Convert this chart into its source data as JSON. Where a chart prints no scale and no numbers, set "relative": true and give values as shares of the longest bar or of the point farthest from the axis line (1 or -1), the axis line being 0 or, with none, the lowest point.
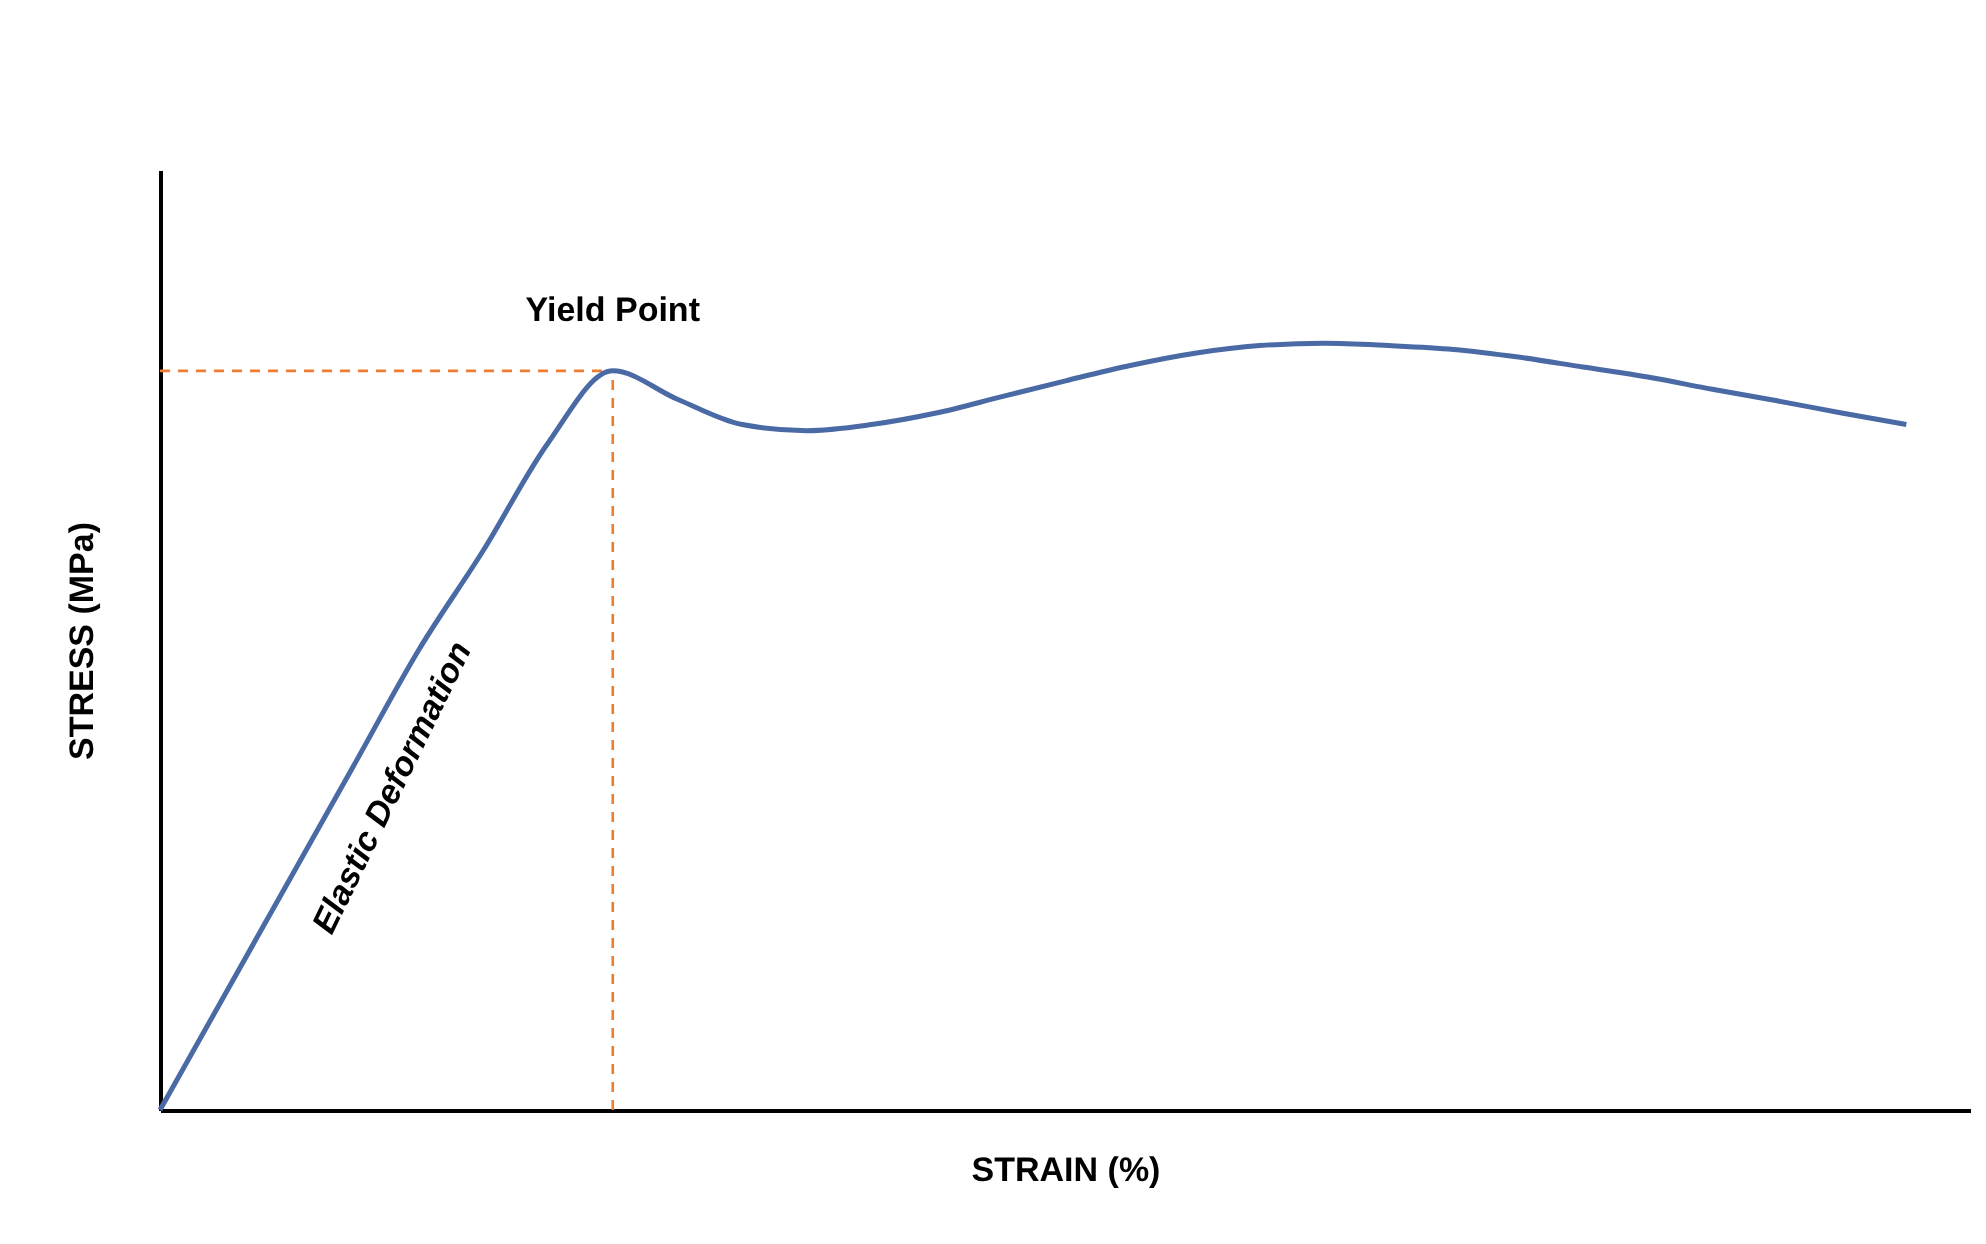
{
  "chart_data": {
    "type": "line",
    "relative": true,
    "xlabel": "STRAIN (%)",
    "ylabel": "STRESS (MPa)",
    "categories": [
      null,
      null,
      null,
      null,
      null,
      null,
      null,
      null,
      null,
      null,
      null,
      null,
      null,
      null,
      null,
      null,
      null,
      null,
      null,
      null,
      null,
      null,
      null,
      null,
      null,
      null,
      null,
      null
    ],
    "series": [
      {
        "color": "#4a6aa5",
        "values": [
          0,
          0.15,
          0.3,
          0.45,
          0.6,
          0.73,
          0.87,
          0.964,
          0.927,
          0.894,
          0.886,
          0.894,
          0.909,
          0.93,
          0.951,
          0.971,
          0.987,
          0.997,
          1,
          0.997,
          0.992,
          0.982,
          0.969,
          0.956,
          0.94,
          0.925,
          0.909,
          0.894
        ]
      }
    ],
    "ref_lines": [
      {
        "axis": "y",
        "value": 0.964,
        "color": "#ed7d31",
        "line_style": "dashed"
      }
    ],
    "annotations": [
      "Yield Point",
      "Elastic Deformation"
    ],
    "marker": "none",
    "line_style": "solid"
  }
}
